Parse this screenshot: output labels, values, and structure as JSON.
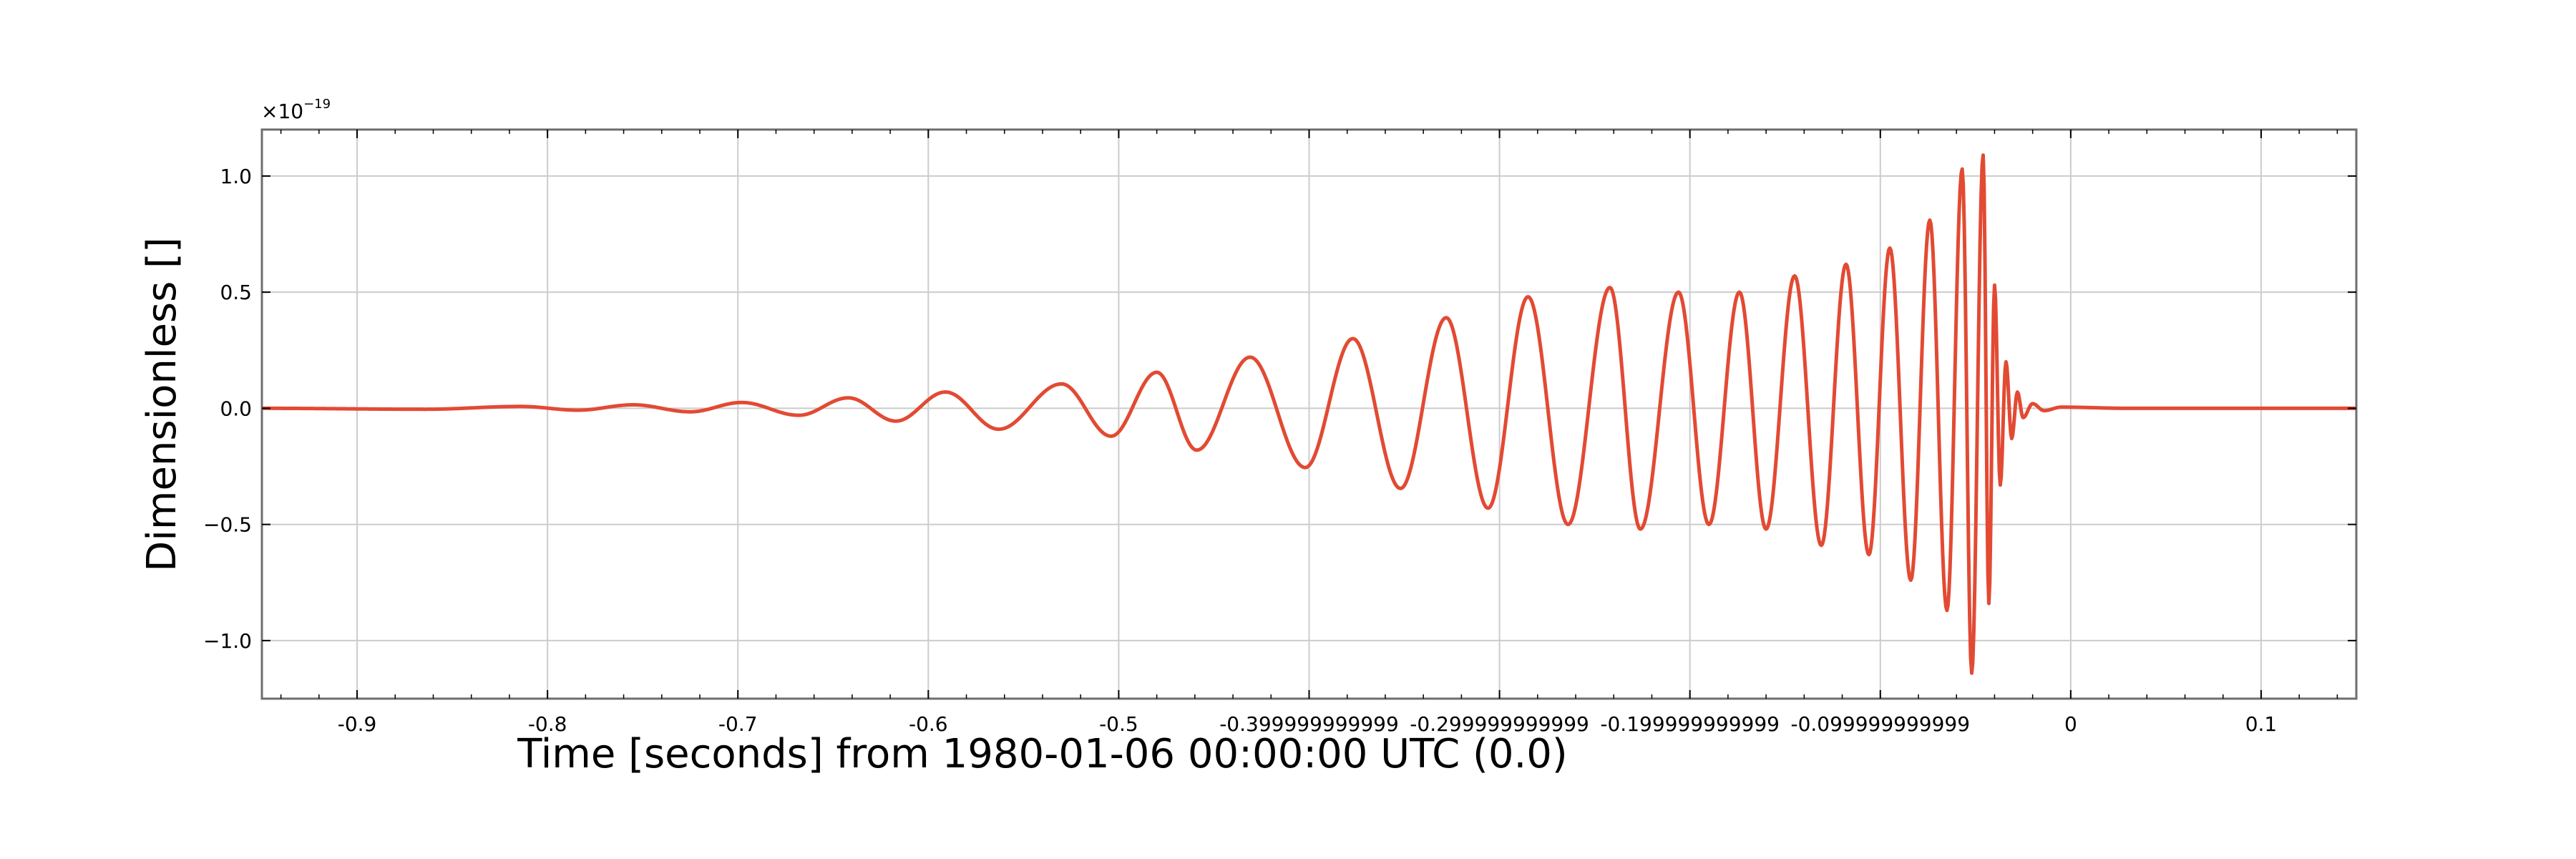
{
  "chart_data": {
    "type": "line",
    "title": "",
    "xlabel": "Time [seconds] from 1980-01-06 00:00:00 UTC (0.0)",
    "ylabel": "Dimensionless []",
    "y_offset_label": {
      "base": "×10",
      "exponent": "−19"
    },
    "xlim": [
      -0.95,
      0.15
    ],
    "ylim": [
      -1.25,
      1.2
    ],
    "grid": true,
    "color": "#e24a33",
    "x_ticks": [
      {
        "value": -0.9,
        "label": "-0.9"
      },
      {
        "value": -0.8,
        "label": "-0.8"
      },
      {
        "value": -0.7,
        "label": "-0.7"
      },
      {
        "value": -0.6,
        "label": "-0.6"
      },
      {
        "value": -0.5,
        "label": "-0.5"
      },
      {
        "value": -0.4,
        "label": "-0.399999999999"
      },
      {
        "value": -0.3,
        "label": "-0.299999999999"
      },
      {
        "value": -0.2,
        "label": "-0.199999999999"
      },
      {
        "value": -0.1,
        "label": "-0.099999999999"
      },
      {
        "value": 0.0,
        "label": "0"
      },
      {
        "value": 0.1,
        "label": "0.1"
      }
    ],
    "y_ticks": [
      {
        "value": 1.0,
        "label": "1.0"
      },
      {
        "value": 0.5,
        "label": "0.5"
      },
      {
        "value": 0.0,
        "label": "0.0"
      },
      {
        "value": -0.5,
        "label": "−0.5"
      },
      {
        "value": -1.0,
        "label": "−1.0"
      }
    ],
    "series": [
      {
        "extrema": [
          [
            -0.95,
            0.0
          ],
          [
            -0.864,
            -0.004
          ],
          [
            -0.814,
            0.008
          ],
          [
            -0.784,
            -0.008
          ],
          [
            -0.755,
            0.015
          ],
          [
            -0.725,
            -0.015
          ],
          [
            -0.698,
            0.025
          ],
          [
            -0.668,
            -0.03
          ],
          [
            -0.642,
            0.045
          ],
          [
            -0.617,
            -0.055
          ],
          [
            -0.591,
            0.07
          ],
          [
            -0.563,
            -0.09
          ],
          [
            -0.53,
            0.105
          ],
          [
            -0.504,
            -0.12
          ],
          [
            -0.48,
            0.155
          ],
          [
            -0.459,
            -0.18
          ],
          [
            -0.431,
            0.22
          ],
          [
            -0.402,
            -0.255
          ],
          [
            -0.377,
            0.3
          ],
          [
            -0.352,
            -0.345
          ],
          [
            -0.328,
            0.39
          ],
          [
            -0.306,
            -0.43
          ],
          [
            -0.285,
            0.48
          ],
          [
            -0.264,
            -0.5
          ],
          [
            -0.242,
            0.52
          ],
          [
            -0.226,
            -0.52
          ],
          [
            -0.206,
            0.5
          ],
          [
            -0.19,
            -0.5
          ],
          [
            -0.174,
            0.5
          ],
          [
            -0.16,
            -0.52
          ],
          [
            -0.145,
            0.57
          ],
          [
            -0.131,
            -0.59
          ],
          [
            -0.118,
            0.62
          ],
          [
            -0.106,
            -0.63
          ],
          [
            -0.095,
            0.69
          ],
          [
            -0.084,
            -0.74
          ],
          [
            -0.074,
            0.81
          ],
          [
            -0.065,
            -0.87
          ],
          [
            -0.057,
            1.03
          ],
          [
            -0.052,
            -1.14
          ],
          [
            -0.046,
            1.09
          ],
          [
            -0.043,
            -0.84
          ],
          [
            -0.04,
            0.53
          ],
          [
            -0.037,
            -0.33
          ],
          [
            -0.034,
            0.2
          ],
          [
            -0.031,
            -0.13
          ],
          [
            -0.028,
            0.07
          ],
          [
            -0.025,
            -0.04
          ],
          [
            -0.02,
            0.02
          ],
          [
            -0.014,
            -0.01
          ],
          [
            -0.005,
            0.005
          ],
          [
            0.03,
            0.0
          ],
          [
            0.15,
            0.0
          ]
        ]
      }
    ]
  }
}
